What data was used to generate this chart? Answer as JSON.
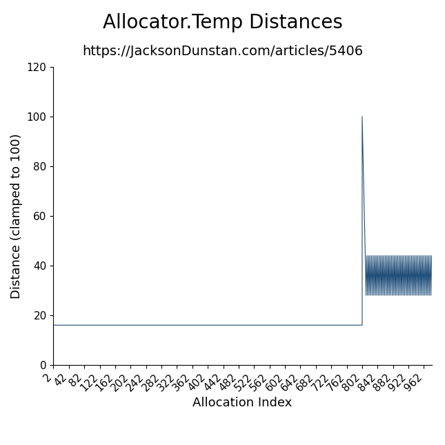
{
  "title": "Allocator.Temp Distances",
  "subtitle": "https://JacksonDunstan.com/articles/5406",
  "xlabel": "Allocation Index",
  "ylabel": "Distance (clamped to 100)",
  "line_color": "#1f4e79",
  "background_color": "#ffffff",
  "ylim": [
    0,
    120
  ],
  "xlim": [
    2,
    982
  ],
  "flat_value": 16,
  "flat_start": 2,
  "flat_end": 802,
  "spike_index": 802,
  "spike_value": 100,
  "osc_start": 810,
  "osc_end": 982,
  "osc_low": 28,
  "osc_high": 44,
  "osc_step": 2,
  "yticks": [
    0,
    20,
    40,
    60,
    80,
    100,
    120
  ],
  "xtick_start": 2,
  "xtick_step": 40,
  "xtick_end": 982,
  "title_fontsize": 20,
  "subtitle_fontsize": 14,
  "axis_label_fontsize": 13,
  "tick_fontsize": 11
}
